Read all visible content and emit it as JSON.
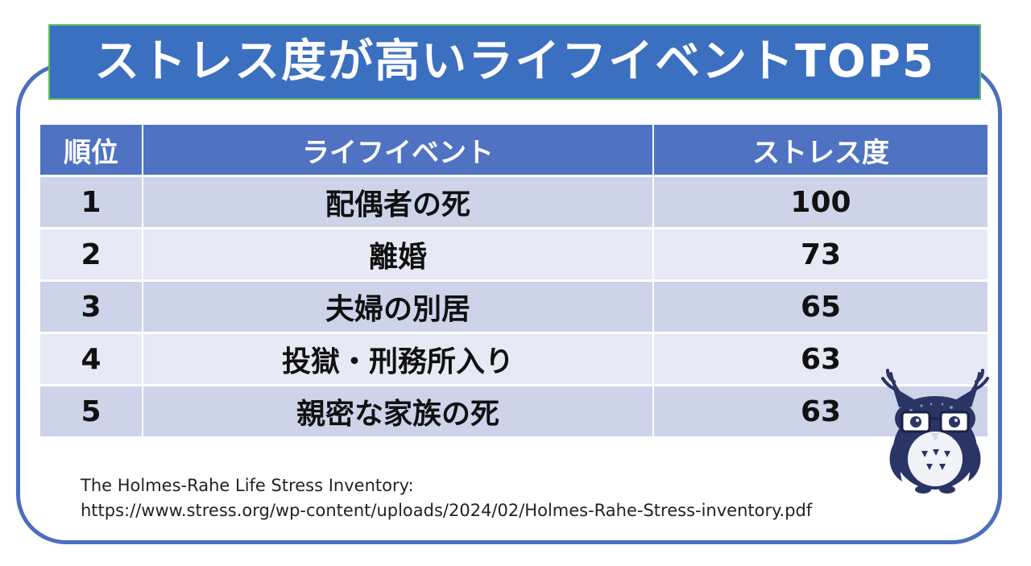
{
  "title": "ストレス度が高いライフイベントTOP5",
  "table": {
    "headers": {
      "rank": "順位",
      "event": "ライフイベント",
      "stress": "ストレス度"
    },
    "rows": [
      {
        "rank": "1",
        "event": "配偶者の死",
        "stress": "100"
      },
      {
        "rank": "2",
        "event": "離婚",
        "stress": "73"
      },
      {
        "rank": "3",
        "event": "夫婦の別居",
        "stress": "65"
      },
      {
        "rank": "4",
        "event": "投獄・刑務所入り",
        "stress": "63"
      },
      {
        "rank": "5",
        "event": "親密な家族の死",
        "stress": "63"
      }
    ]
  },
  "source": {
    "line1": "The Holmes-Rahe Life Stress Inventory:",
    "line2": "https://www.stress.org/wp-content/uploads/2024/02/Holmes-Rahe-Stress-inventory.pdf"
  },
  "mascot": {
    "icon": "owl-with-glasses-illustration",
    "color": "#2a3566"
  },
  "colors": {
    "frame": "#4a6fbf",
    "title_bg": "#3b6fc0",
    "title_border": "#5cbf6a",
    "header_bg": "#4f73c2",
    "row_odd": "#cdd4ea",
    "row_even": "#e7eaf4"
  }
}
